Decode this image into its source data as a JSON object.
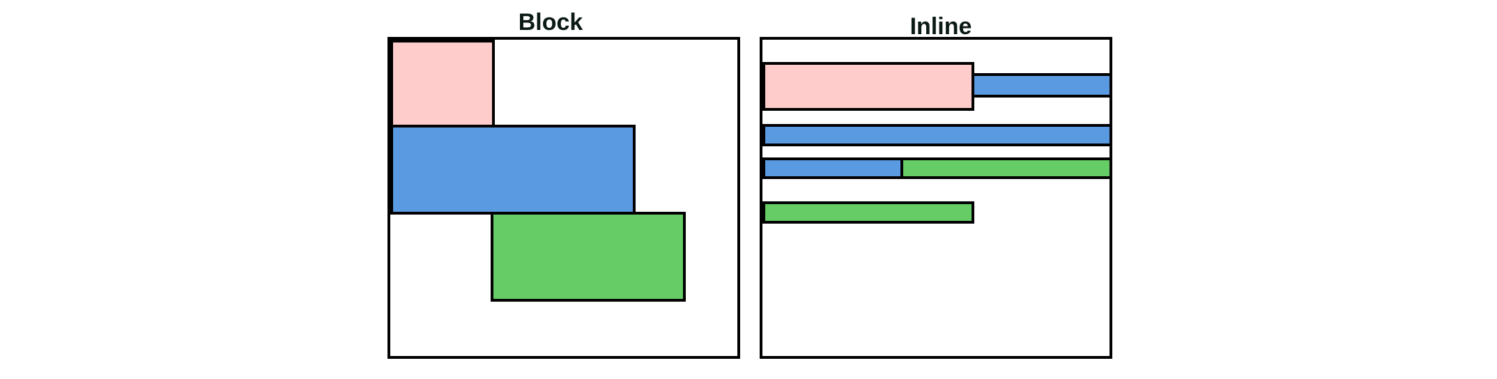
{
  "colors": {
    "pink": "#ffcccc",
    "blue": "#5a9ae0",
    "green": "#66cc66",
    "border": "#000000",
    "background": "#ffffff"
  },
  "block_panel": {
    "title": "Block",
    "boxes": [
      {
        "name": "block-pink-box",
        "color": "pink"
      },
      {
        "name": "block-blue-box",
        "color": "blue"
      },
      {
        "name": "block-green-box",
        "color": "green"
      }
    ]
  },
  "inline_panel": {
    "title": "Inline",
    "boxes": [
      {
        "name": "inline-pink-box",
        "color": "pink"
      },
      {
        "name": "inline-blue-segment-1",
        "color": "blue"
      },
      {
        "name": "inline-blue-segment-2",
        "color": "blue"
      },
      {
        "name": "inline-blue-segment-3",
        "color": "blue"
      },
      {
        "name": "inline-green-segment-1",
        "color": "green"
      },
      {
        "name": "inline-green-segment-2",
        "color": "green"
      }
    ]
  }
}
